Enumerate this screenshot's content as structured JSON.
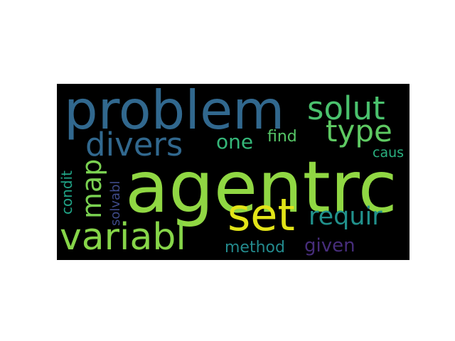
{
  "words": [
    {
      "id": "problem",
      "text": "problem",
      "color": "#31688e"
    },
    {
      "id": "agentrc",
      "text": "agentrc",
      "color": "#90d743"
    },
    {
      "id": "solut",
      "text": "solut",
      "color": "#4ac16d"
    },
    {
      "id": "type",
      "text": "type",
      "color": "#5ec962"
    },
    {
      "id": "divers",
      "text": "divers",
      "color": "#31688e"
    },
    {
      "id": "one",
      "text": "one",
      "color": "#35b779"
    },
    {
      "id": "find",
      "text": "find",
      "color": "#56c667"
    },
    {
      "id": "map",
      "text": "map",
      "color": "#7ad151"
    },
    {
      "id": "set",
      "text": "set",
      "color": "#e2e418"
    },
    {
      "id": "variabl",
      "text": "variabl",
      "color": "#86d549"
    },
    {
      "id": "requir",
      "text": "requir",
      "color": "#21918c"
    },
    {
      "id": "method",
      "text": "method",
      "color": "#238a8d"
    },
    {
      "id": "given",
      "text": "given",
      "color": "#472d7b"
    },
    {
      "id": "condit",
      "text": "condit",
      "color": "#20a386"
    },
    {
      "id": "solvabl",
      "text": "solvabl",
      "color": "#3e4a89"
    },
    {
      "id": "caus",
      "text": "caus",
      "color": "#2ab07f"
    }
  ]
}
